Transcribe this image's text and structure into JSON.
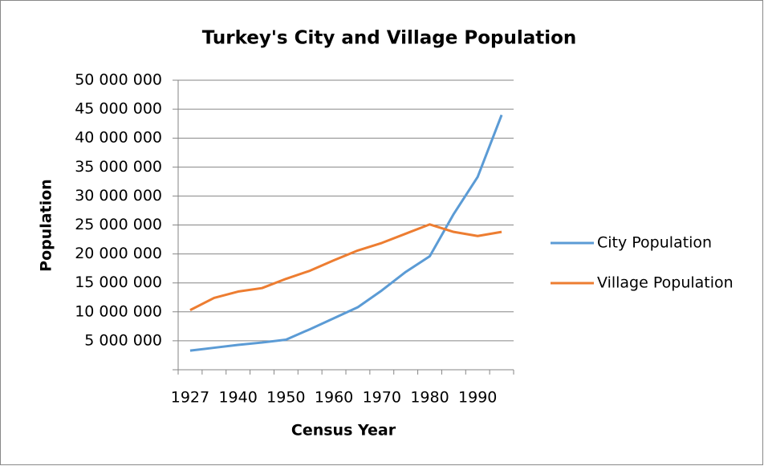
{
  "chart_data": {
    "type": "line",
    "title": "Turkey's City and Village Population",
    "x_label": "Census Year",
    "y_label": "Population",
    "categories": [
      "1927",
      null,
      "1940",
      null,
      "1950",
      null,
      "1960",
      null,
      "1970",
      null,
      "1980",
      null,
      "1990",
      null
    ],
    "series": [
      {
        "name": "City Population",
        "color": "#5b9bd5",
        "values": [
          3300000,
          3800000,
          4300000,
          4700000,
          5200000,
          7000000,
          8900000,
          10800000,
          13700000,
          16900000,
          19600000,
          26900000,
          33300000,
          44000000
        ]
      },
      {
        "name": "Village Population",
        "color": "#ed7d31",
        "values": [
          10300000,
          12400000,
          13500000,
          14100000,
          15700000,
          17100000,
          18900000,
          20600000,
          21900000,
          23500000,
          25100000,
          23800000,
          23100000,
          23800000
        ]
      }
    ],
    "ylim": [
      0,
      50000000
    ],
    "yticks": [
      {
        "value": 5000000,
        "label": "5 000 000"
      },
      {
        "value": 10000000,
        "label": "10 000 000"
      },
      {
        "value": 15000000,
        "label": "15 000 000"
      },
      {
        "value": 20000000,
        "label": "20 000 000"
      },
      {
        "value": 25000000,
        "label": "25 000 000"
      },
      {
        "value": 30000000,
        "label": "30 000 000"
      },
      {
        "value": 35000000,
        "label": "35 000 000"
      },
      {
        "value": 40000000,
        "label": "40 000 000"
      },
      {
        "value": 45000000,
        "label": "45 000 000"
      },
      {
        "value": 50000000,
        "label": "50 000 000"
      }
    ],
    "grid": true,
    "legend": "right"
  }
}
